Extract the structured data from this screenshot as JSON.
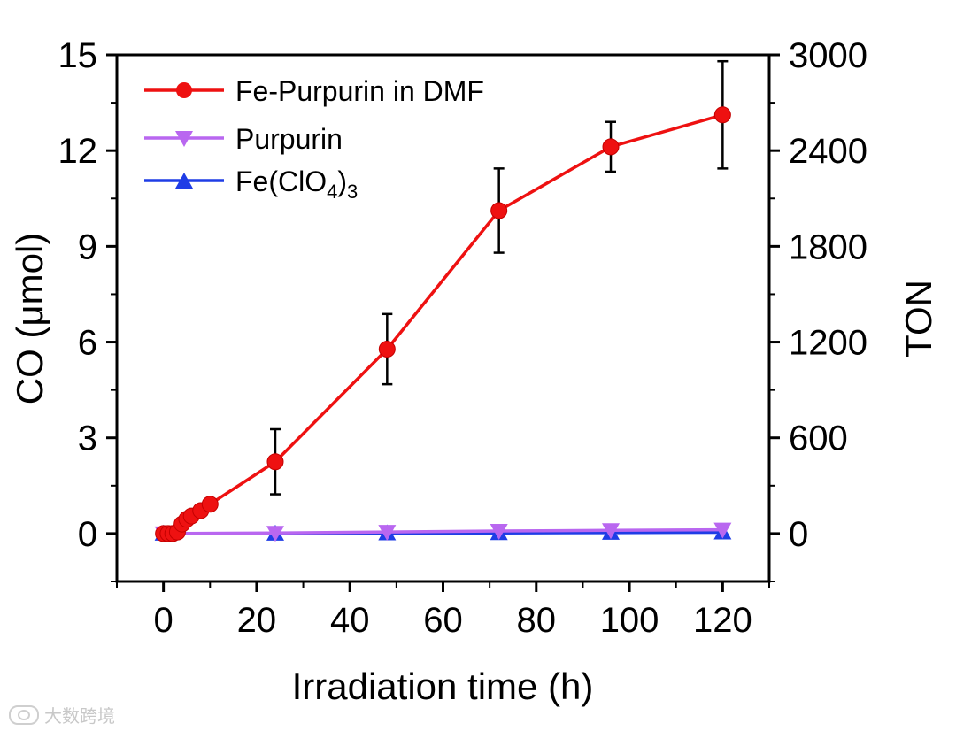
{
  "chart_data": {
    "type": "line",
    "title": "",
    "xlabel": "Irradiation time (h)",
    "ylabel": "CO (μmol)",
    "y2label": "TON",
    "xlim": [
      -10,
      130
    ],
    "ylim": [
      -1.5,
      15
    ],
    "y2lim": [
      -300,
      3000
    ],
    "xticks": [
      0,
      20,
      40,
      60,
      80,
      100,
      120
    ],
    "yticks": [
      0,
      3,
      6,
      9,
      12,
      15
    ],
    "y2ticks": [
      0,
      600,
      1200,
      1800,
      2400,
      3000
    ],
    "legend_position": "top-left",
    "series": [
      {
        "name": "Fe-Purpurin in DMF",
        "legend_html": "Fe-Purpurin in DMF",
        "color": "#ee1111",
        "marker": "circle",
        "x": [
          0,
          1,
          2,
          3,
          4,
          5,
          6,
          8,
          10,
          24,
          48,
          72,
          96,
          120
        ],
        "y": [
          0,
          0,
          0,
          0.05,
          0.3,
          0.45,
          0.55,
          0.72,
          0.92,
          2.25,
          5.78,
          10.12,
          12.12,
          13.12
        ],
        "err": [
          0,
          0,
          0,
          0,
          0,
          0,
          0,
          0,
          0,
          1.02,
          1.1,
          1.32,
          0.78,
          1.68
        ]
      },
      {
        "name": "Purpurin",
        "legend_html": "Purpurin",
        "color": "#b967f0",
        "marker": "triangle-down",
        "x": [
          0,
          24,
          48,
          72,
          96,
          120
        ],
        "y": [
          0,
          0.02,
          0.05,
          0.08,
          0.1,
          0.12
        ]
      },
      {
        "name": "Fe(ClO4)3",
        "legend_parts": [
          "Fe(ClO",
          "4",
          ")",
          "3"
        ],
        "color": "#1f3de6",
        "marker": "triangle-up",
        "x": [
          0,
          24,
          48,
          72,
          96,
          120
        ],
        "y": [
          0,
          0.0,
          0.01,
          0.02,
          0.03,
          0.04
        ]
      }
    ]
  },
  "watermark": {
    "text": "大数跨境"
  }
}
